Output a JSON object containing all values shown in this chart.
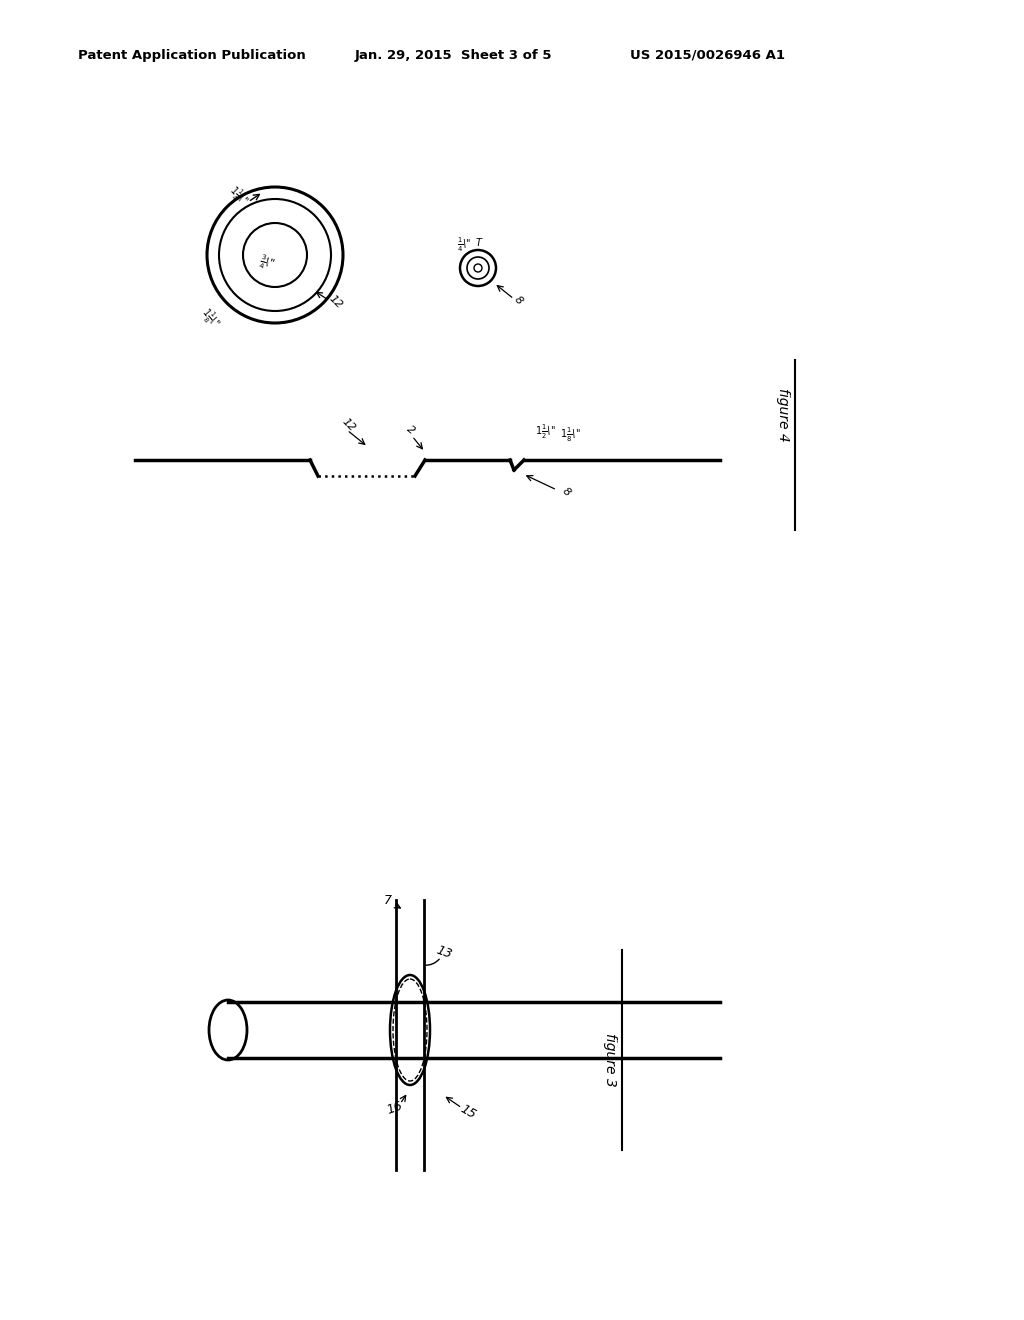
{
  "bg_color": "#ffffff",
  "header_text1": "Patent Application Publication",
  "header_text2": "Jan. 29, 2015  Sheet 3 of 5",
  "header_text3": "US 2015/0026946 A1",
  "figure4_label": "figure 4",
  "figure3_label": "figure 3",
  "fig_width": 10.24,
  "fig_height": 13.2
}
